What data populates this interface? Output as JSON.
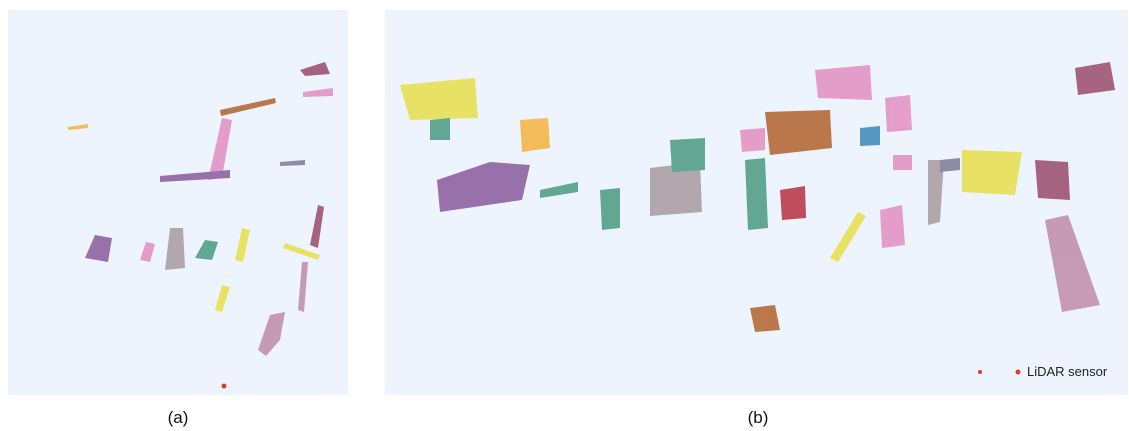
{
  "panels": [
    {
      "caption": "(a)"
    },
    {
      "caption": "(b)"
    }
  ],
  "legend": {
    "label": "LiDAR sensor"
  }
}
